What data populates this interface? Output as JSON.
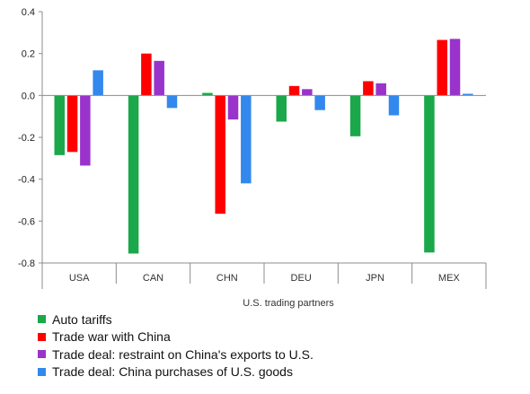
{
  "chart_data": {
    "type": "bar",
    "title": "",
    "xlabel": "U.S. trading partners",
    "ylabel": "",
    "ylim": [
      -0.8,
      0.4
    ],
    "yticks": [
      0.4,
      0.2,
      0.0,
      -0.2,
      -0.4,
      -0.6,
      -0.8
    ],
    "ytick_labels": [
      "0.4",
      "0.2",
      "0.0",
      "-0.2",
      "-0.4",
      "-0.6",
      "-0.8"
    ],
    "categories": [
      "USA",
      "CAN",
      "CHN",
      "DEU",
      "JPN",
      "MEX"
    ],
    "legend_position": "bottom-left",
    "grid": false,
    "series": [
      {
        "name": "Auto tariffs",
        "color": "#1aa84a",
        "values": [
          -0.285,
          -0.755,
          0.012,
          -0.125,
          -0.195,
          -0.75
        ]
      },
      {
        "name": "Trade war with China",
        "color": "#ff0000",
        "values": [
          -0.27,
          0.2,
          -0.565,
          0.045,
          0.068,
          0.265
        ]
      },
      {
        "name": "Trade deal: restraint on China's exports to U.S.",
        "color": "#9933cc",
        "values": [
          -0.335,
          0.165,
          -0.115,
          0.03,
          0.058,
          0.27
        ]
      },
      {
        "name": "Trade deal: China purchases of U.S. goods",
        "color": "#3388ee",
        "values": [
          0.12,
          -0.06,
          -0.42,
          -0.07,
          -0.095,
          0.008
        ]
      }
    ]
  }
}
